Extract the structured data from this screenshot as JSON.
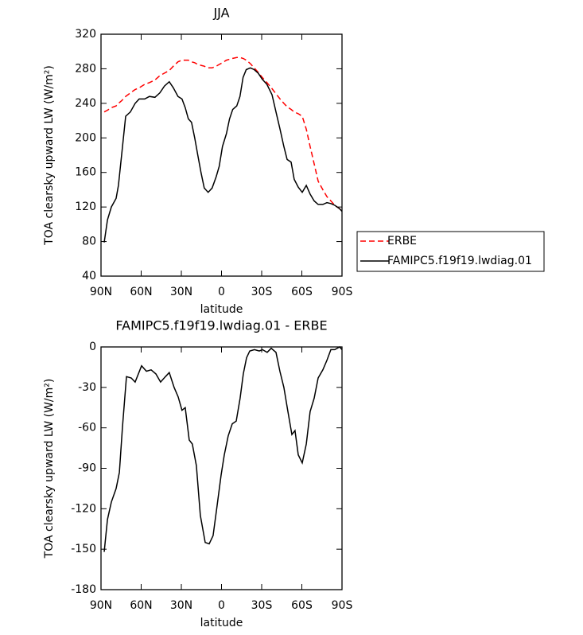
{
  "chart_data": [
    {
      "type": "line",
      "title": "JJA",
      "xlabel": "latitude",
      "ylabel": "TOA clearsky upward LW (W/m²)",
      "xlim": [
        90,
        -90
      ],
      "xticks": [
        {
          "value": 90,
          "label": "90N"
        },
        {
          "value": 60,
          "label": "60N"
        },
        {
          "value": 30,
          "label": "30N"
        },
        0,
        {
          "value": -30,
          "label": "30S"
        },
        {
          "value": -60,
          "label": "60S"
        },
        {
          "value": -90,
          "label": "90S"
        }
      ],
      "ylim": [
        40,
        320
      ],
      "yticks": [
        40,
        80,
        120,
        160,
        200,
        240,
        280,
        320
      ],
      "legend": "right",
      "x": [
        87.6,
        85.2,
        82.3,
        78.7,
        77,
        74.6,
        71.6,
        68.1,
        64.5,
        61.5,
        57.4,
        53.8,
        49.7,
        46.1,
        42.6,
        39,
        36,
        32.5,
        29.5,
        27.1,
        24.8,
        22.4,
        20,
        17.7,
        15.3,
        12.9,
        10,
        7,
        4,
        1.7,
        -0.7,
        -3.7,
        -6,
        -8.4,
        -11.4,
        -13.8,
        -16.1,
        -18.5,
        -21.5,
        -24.4,
        -27.4,
        -30.4,
        -33.9,
        -37.7,
        -40.7,
        -43.7,
        -46.6,
        -49,
        -52,
        -54.3,
        -57.3,
        -60.3,
        -63.3,
        -66.2,
        -69.2,
        -72.2,
        -75.7,
        -78.7,
        -81.7,
        -84.6,
        -88.2,
        -90
      ],
      "series": [
        {
          "name": "ERBE",
          "color": "#ff0000",
          "dash": true,
          "values": [
            230,
            232,
            235,
            237,
            240,
            243,
            248,
            252,
            256,
            258,
            262,
            264,
            267,
            272,
            275,
            278,
            283,
            288,
            290,
            290,
            290,
            288,
            287,
            285,
            284,
            283,
            281,
            281,
            283,
            285,
            287,
            290,
            291,
            292,
            293,
            293,
            292,
            290,
            286,
            281,
            276,
            270,
            264,
            257,
            251,
            245,
            240,
            236,
            233,
            230,
            228,
            225,
            210,
            190,
            170,
            150,
            140,
            132,
            127,
            122,
            118,
            115
          ]
        },
        {
          "name": "FAMIPC5.f19f19.lwdiag.01",
          "color": "#000000",
          "dash": false,
          "values": [
            79,
            105,
            120,
            130,
            145,
            180,
            225,
            230,
            240,
            245,
            245,
            248,
            247,
            252,
            260,
            265,
            258,
            248,
            245,
            235,
            222,
            218,
            200,
            180,
            160,
            142,
            137,
            142,
            155,
            167,
            190,
            205,
            222,
            233,
            237,
            248,
            270,
            279,
            281,
            279,
            275,
            268,
            262,
            250,
            230,
            210,
            190,
            175,
            172,
            152,
            143,
            137,
            145,
            135,
            127,
            123,
            123,
            125,
            124,
            122,
            118,
            115
          ]
        }
      ]
    },
    {
      "type": "line",
      "title": "FAMIPC5.f19f19.lwdiag.01 - ERBE",
      "xlabel": "latitude",
      "ylabel": "TOA clearsky upward LW (W/m²)",
      "xlim": [
        90,
        -90
      ],
      "xticks": [
        {
          "value": 90,
          "label": "90N"
        },
        {
          "value": 60,
          "label": "60N"
        },
        {
          "value": 30,
          "label": "30N"
        },
        0,
        {
          "value": -30,
          "label": "30S"
        },
        {
          "value": -60,
          "label": "60S"
        },
        {
          "value": -90,
          "label": "90S"
        }
      ],
      "ylim": [
        -180,
        0
      ],
      "yticks": [
        -180,
        -150,
        -120,
        -90,
        -60,
        -30,
        0
      ],
      "x": [
        87.6,
        85.2,
        82.3,
        78.7,
        76.3,
        74,
        71,
        67.4,
        64.5,
        59.7,
        56.1,
        52.6,
        49,
        45.5,
        41.9,
        39,
        35.4,
        32.4,
        29.5,
        27.1,
        24.1,
        21.8,
        18.8,
        15.8,
        12.2,
        9.2,
        6.3,
        3.3,
        0.3,
        -2.1,
        -5,
        -8,
        -11,
        -13.9,
        -16.3,
        -18.7,
        -21.1,
        -24.6,
        -28.2,
        -30.6,
        -34.1,
        -37.1,
        -40.7,
        -43.6,
        -46.6,
        -49.6,
        -52.6,
        -54.9,
        -57.3,
        -60.3,
        -63.3,
        -66.2,
        -69.2,
        -72.2,
        -75.7,
        -78.7,
        -81.7,
        -84.6,
        -88.2,
        -90
      ],
      "series": [
        {
          "color": "#000000",
          "dash": false,
          "values": [
            -152,
            -128,
            -115,
            -105,
            -93,
            -60,
            -22,
            -23,
            -26,
            -14,
            -18,
            -17,
            -20,
            -26,
            -22,
            -19,
            -30,
            -37,
            -47,
            -45,
            -69,
            -72,
            -88,
            -125,
            -145,
            -146,
            -140,
            -118,
            -95,
            -80,
            -66,
            -57,
            -55,
            -38,
            -20,
            -8,
            -3,
            -2,
            -3,
            -2,
            -4,
            -1,
            -4,
            -18,
            -30,
            -48,
            -65,
            -62,
            -80,
            -86,
            -72,
            -48,
            -38,
            -23,
            -17,
            -10,
            -2,
            -2,
            0,
            -2
          ]
        }
      ]
    }
  ]
}
